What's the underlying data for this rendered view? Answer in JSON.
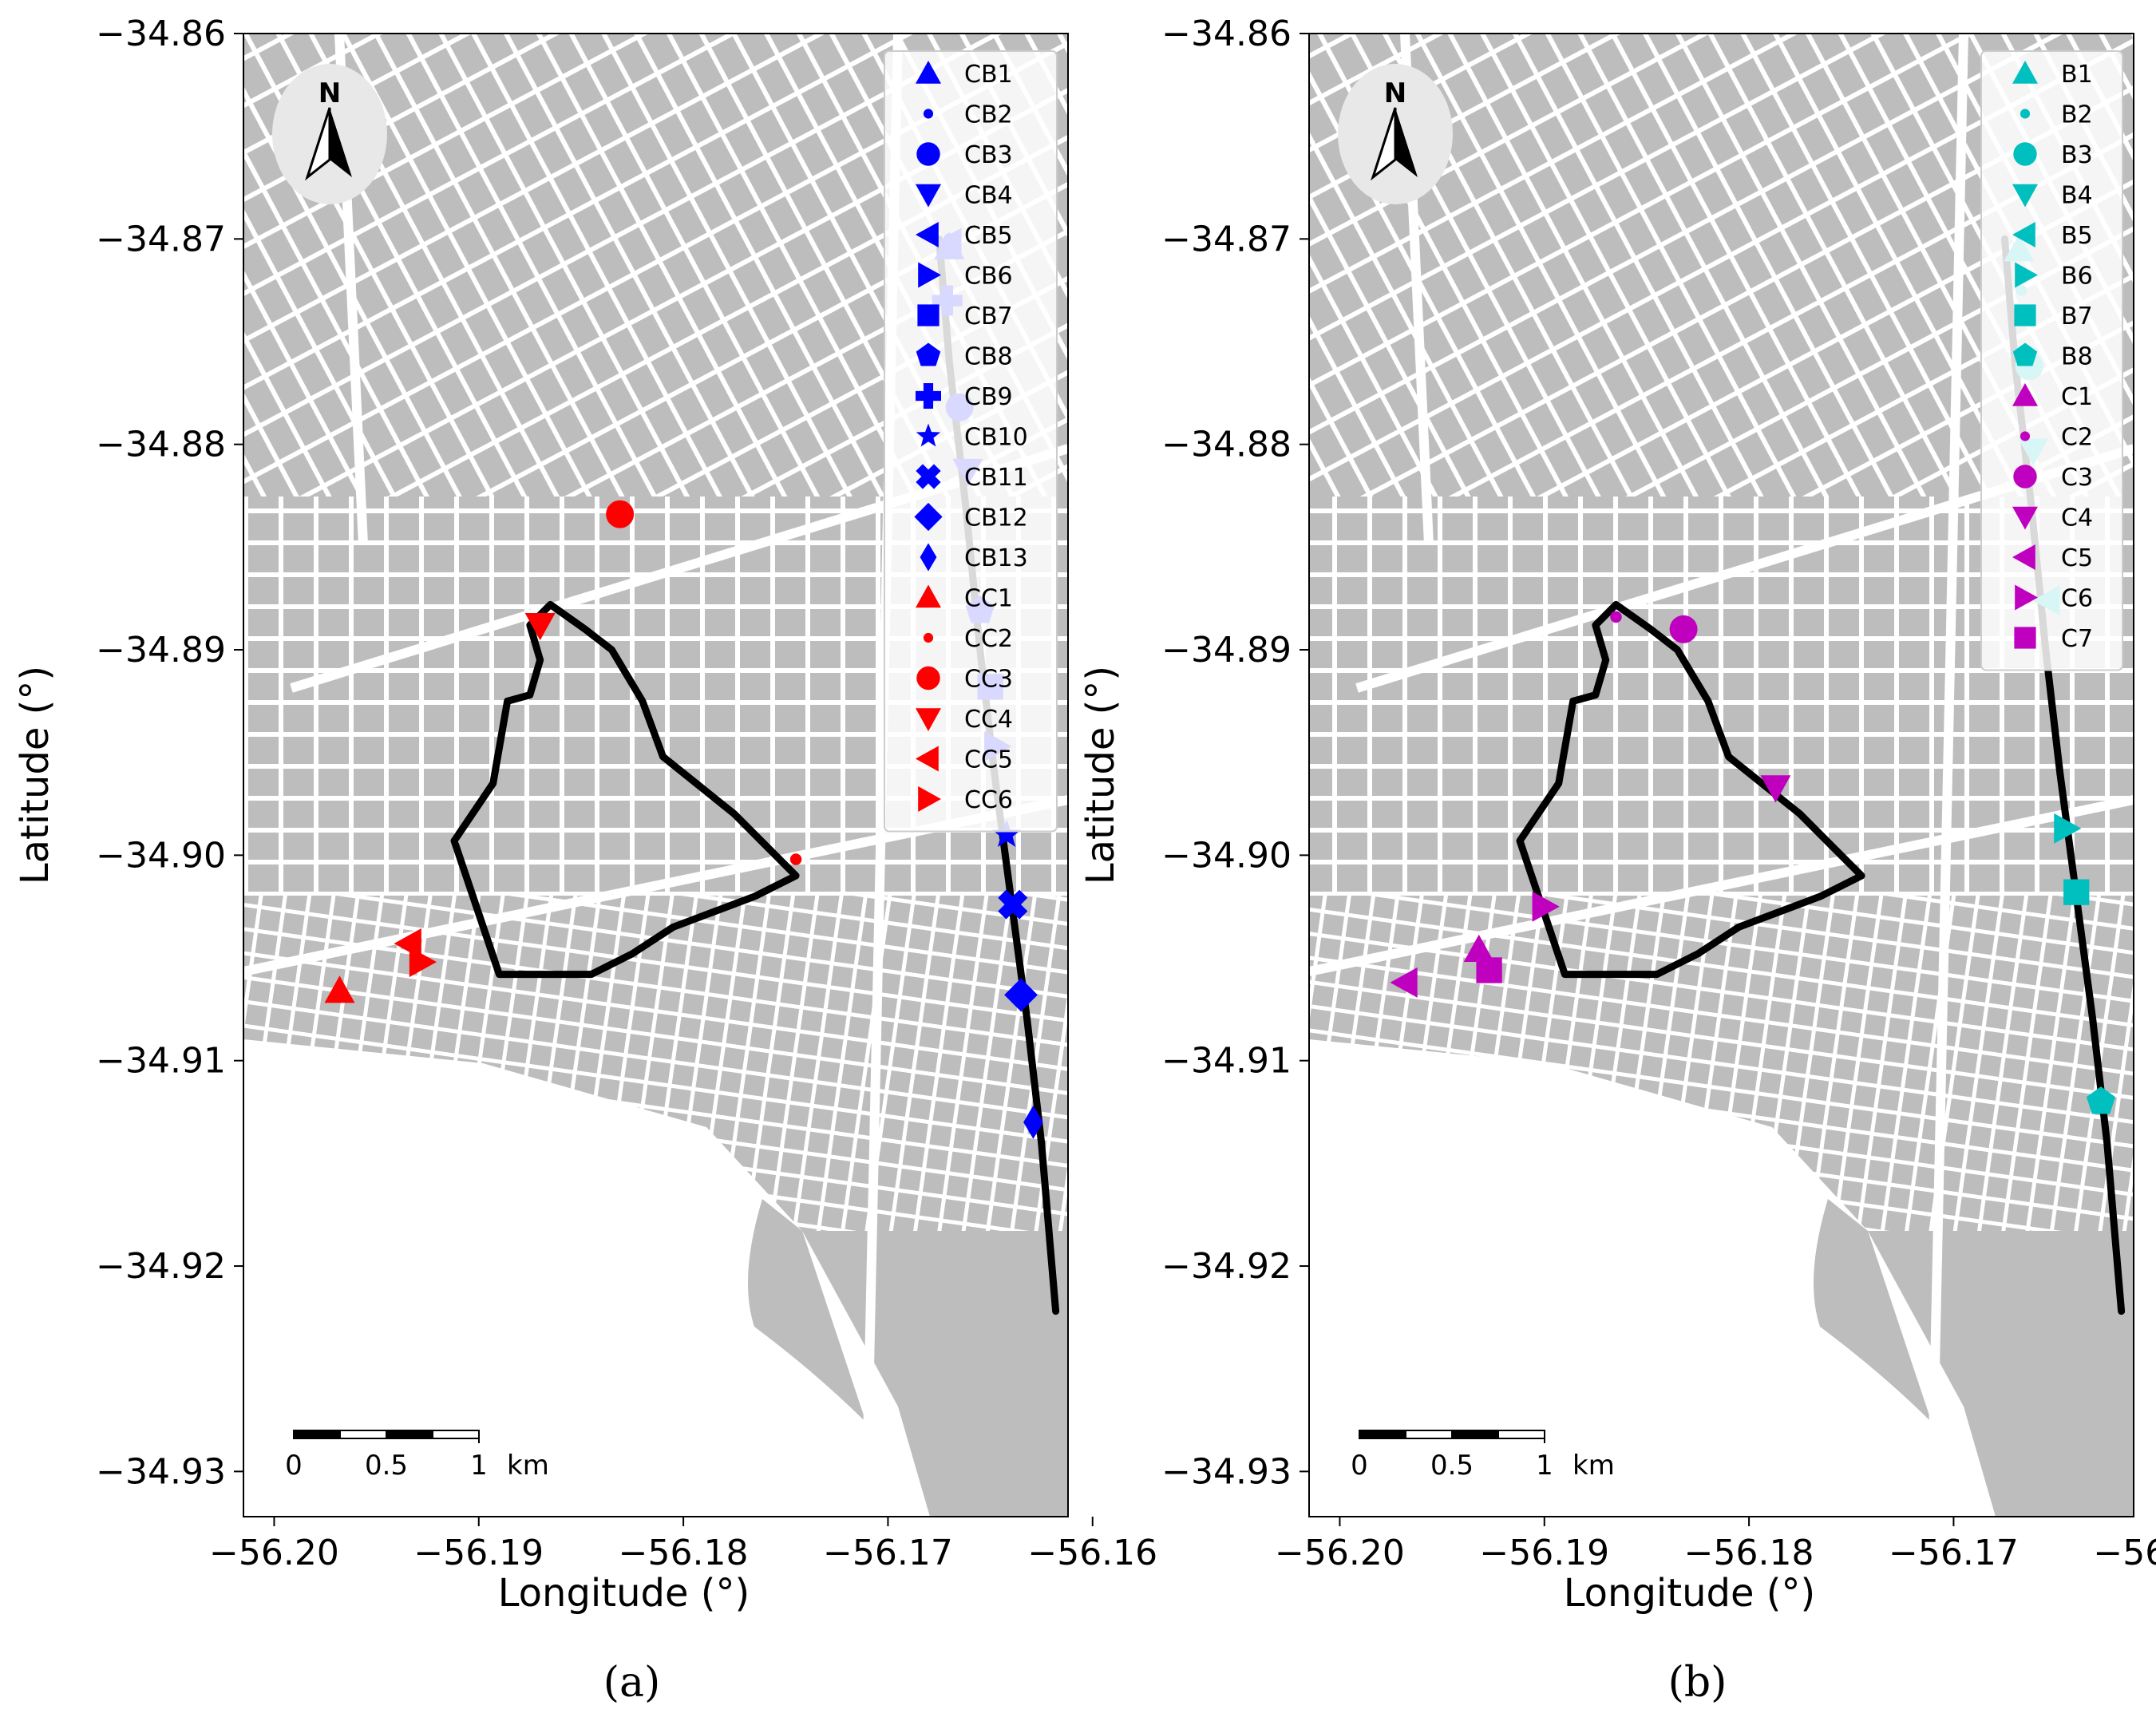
{
  "colors": {
    "map_background": "#bdbdbd",
    "streets": "#ffffff",
    "route": "#000000",
    "CB": "#0000ff",
    "CC": "#ff0000",
    "B": "#00bfbf",
    "C": "#bf00bf"
  },
  "map_data": {
    "x_ticks": [
      -56.2,
      -56.19,
      -56.18,
      -56.17,
      -56.16
    ],
    "x_tick_labels": [
      "−56.20",
      "−56.19",
      "−56.18",
      "−56.17",
      "−56.16"
    ],
    "y_ticks": [
      -34.86,
      -34.87,
      -34.88,
      -34.89,
      -34.9,
      -34.91,
      -34.92,
      -34.93
    ],
    "y_tick_labels": [
      "−34.86",
      "−34.87",
      "−34.88",
      "−34.89",
      "−34.90",
      "−34.91",
      "−34.92",
      "−34.93"
    ],
    "xlim": [
      -56.2015,
      -56.1612
    ],
    "ylim": [
      -34.9322,
      -34.86
    ],
    "xlabel": "Longitude (°)",
    "ylabel": "Latitude (°)",
    "north_label": "N",
    "scale_bar": {
      "labels": [
        "0",
        "0.5",
        "1"
      ],
      "unit": "km",
      "length_km": 1
    },
    "route_line": [
      [
        -56.1675,
        -34.87
      ],
      [
        -56.167,
        -34.876
      ],
      [
        -56.1662,
        -34.883
      ],
      [
        -56.1655,
        -34.89
      ],
      [
        -56.1648,
        -34.896
      ],
      [
        -56.164,
        -34.902
      ],
      [
        -56.1632,
        -34.908
      ],
      [
        -56.1625,
        -34.914
      ],
      [
        -56.1618,
        -34.9222
      ]
    ],
    "route_loop": [
      [
        -56.1865,
        -34.8878
      ],
      [
        -56.1848,
        -34.889
      ],
      [
        -56.1835,
        -34.89
      ],
      [
        -56.182,
        -34.8925
      ],
      [
        -56.181,
        -34.8952
      ],
      [
        -56.1775,
        -34.898
      ],
      [
        -56.1745,
        -34.901
      ],
      [
        -56.1765,
        -34.902
      ],
      [
        -56.1805,
        -34.9035
      ],
      [
        -56.1825,
        -34.9048
      ],
      [
        -56.1845,
        -34.9058
      ],
      [
        -56.1875,
        -34.9058
      ],
      [
        -56.189,
        -34.9058
      ],
      [
        -56.1912,
        -34.8993
      ],
      [
        -56.1893,
        -34.8965
      ],
      [
        -56.1886,
        -34.8925
      ],
      [
        -56.1875,
        -34.8922
      ],
      [
        -56.187,
        -34.8905
      ],
      [
        -56.1875,
        -34.8888
      ],
      [
        -56.1865,
        -34.8878
      ]
    ],
    "panels": [
      {
        "label": "(a)",
        "legend_position": "top-right",
        "points": [
          {
            "name": "CB1",
            "lon": -56.167,
            "lat": -34.8704,
            "marker": "triangle-up",
            "group": "CB"
          },
          {
            "name": "CB2",
            "lon": -56.167,
            "lat": -34.87,
            "marker": "point",
            "group": "CB"
          },
          {
            "name": "CB3",
            "lon": -56.1665,
            "lat": -34.8782,
            "marker": "circle",
            "group": "CB"
          },
          {
            "name": "CB4",
            "lon": -56.1661,
            "lat": -34.8813,
            "marker": "triangle-down",
            "group": "CB"
          },
          {
            "name": "CB5",
            "lon": -56.167,
            "lat": -34.8702,
            "marker": "triangle-left",
            "group": "CB"
          },
          {
            "name": "CB6",
            "lon": -56.1647,
            "lat": -34.8947,
            "marker": "triangle-right",
            "group": "CB"
          },
          {
            "name": "CB7",
            "lon": -56.165,
            "lat": -34.8918,
            "marker": "square",
            "group": "CB"
          },
          {
            "name": "CB8",
            "lon": -56.1655,
            "lat": -34.8881,
            "marker": "pentagon",
            "group": "CB"
          },
          {
            "name": "CB9",
            "lon": -56.1671,
            "lat": -34.873,
            "marker": "plus",
            "group": "CB"
          },
          {
            "name": "CB10",
            "lon": -56.1642,
            "lat": -34.899,
            "marker": "star",
            "group": "CB"
          },
          {
            "name": "CB11",
            "lon": -56.1639,
            "lat": -34.9024,
            "marker": "x",
            "group": "CB"
          },
          {
            "name": "CB12",
            "lon": -56.1635,
            "lat": -34.9068,
            "marker": "diamond",
            "group": "CB"
          },
          {
            "name": "CB13",
            "lon": -56.1629,
            "lat": -34.913,
            "marker": "thin-diamond",
            "group": "CB"
          },
          {
            "name": "CC1",
            "lon": -56.1968,
            "lat": -34.9066,
            "marker": "triangle-up",
            "group": "CC"
          },
          {
            "name": "CC2",
            "lon": -56.1745,
            "lat": -34.9002,
            "marker": "point",
            "group": "CC"
          },
          {
            "name": "CC3",
            "lon": -56.1831,
            "lat": -34.8834,
            "marker": "circle",
            "group": "CC"
          },
          {
            "name": "CC4",
            "lon": -56.187,
            "lat": -34.8888,
            "marker": "triangle-down",
            "group": "CC"
          },
          {
            "name": "CC5",
            "lon": -56.1934,
            "lat": -34.9043,
            "marker": "triangle-left",
            "group": "CC"
          },
          {
            "name": "CC6",
            "lon": -56.1928,
            "lat": -34.9052,
            "marker": "triangle-right",
            "group": "CC"
          }
        ]
      },
      {
        "label": "(b)",
        "legend_position": "top-right",
        "points": [
          {
            "name": "B1",
            "lon": -56.1668,
            "lat": -34.8705,
            "marker": "triangle-up",
            "group": "B"
          },
          {
            "name": "B2",
            "lon": -56.1667,
            "lat": -34.8725,
            "marker": "point",
            "group": "B"
          },
          {
            "name": "B3",
            "lon": -56.1663,
            "lat": -34.8762,
            "marker": "circle",
            "group": "B"
          },
          {
            "name": "B4",
            "lon": -56.1661,
            "lat": -34.8803,
            "marker": "triangle-down",
            "group": "B"
          },
          {
            "name": "B5",
            "lon": -56.1654,
            "lat": -34.8876,
            "marker": "triangle-left",
            "group": "B"
          },
          {
            "name": "B6",
            "lon": -56.1645,
            "lat": -34.8987,
            "marker": "triangle-right",
            "group": "B"
          },
          {
            "name": "B7",
            "lon": -56.164,
            "lat": -34.9018,
            "marker": "square",
            "group": "B"
          },
          {
            "name": "B8",
            "lon": -56.1628,
            "lat": -34.912,
            "marker": "pentagon",
            "group": "B"
          },
          {
            "name": "C1",
            "lon": -56.1932,
            "lat": -34.9046,
            "marker": "triangle-up",
            "group": "C"
          },
          {
            "name": "C2",
            "lon": -56.1865,
            "lat": -34.8884,
            "marker": "point",
            "group": "C"
          },
          {
            "name": "C3",
            "lon": -56.1832,
            "lat": -34.889,
            "marker": "circle",
            "group": "C"
          },
          {
            "name": "C4",
            "lon": -56.1787,
            "lat": -34.8967,
            "marker": "triangle-down",
            "group": "C"
          },
          {
            "name": "C5",
            "lon": -56.1968,
            "lat": -34.9062,
            "marker": "triangle-left",
            "group": "C"
          },
          {
            "name": "C6",
            "lon": -56.19,
            "lat": -34.9025,
            "marker": "triangle-right",
            "group": "C"
          },
          {
            "name": "C7",
            "lon": -56.1927,
            "lat": -34.9056,
            "marker": "square",
            "group": "C"
          }
        ]
      }
    ]
  }
}
